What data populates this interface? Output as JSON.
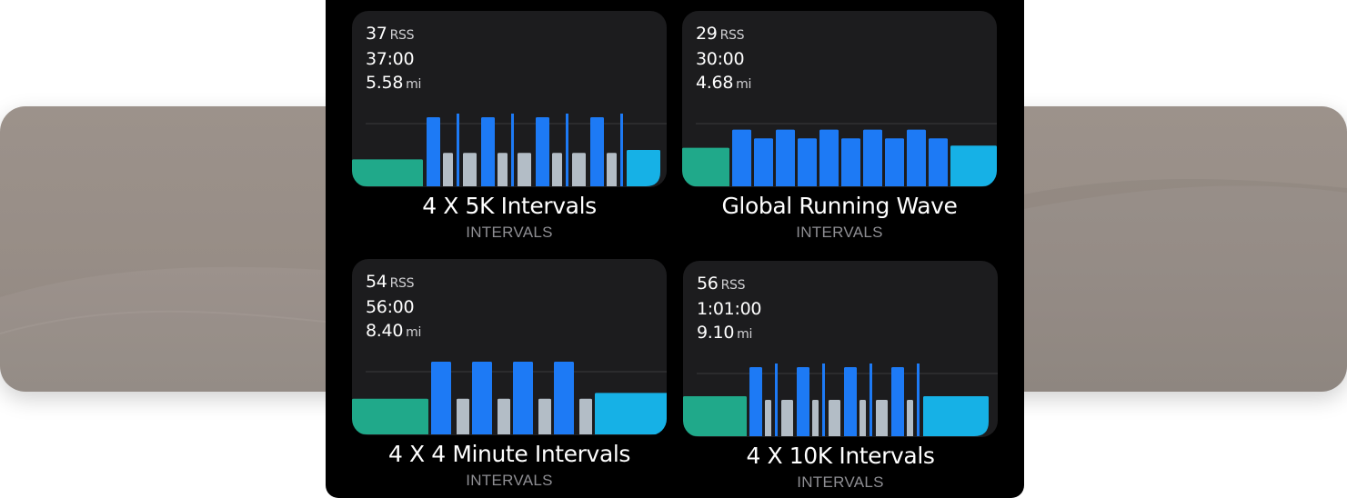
{
  "colors": {
    "warmup": "#20a98a",
    "work": "#1d7af5",
    "recovery": "#b3bdc6",
    "cooldown": "#16b1e6",
    "card_bg": "#1c1c1e",
    "panel_bg": "#000000"
  },
  "unit_rss": "RSS",
  "unit_mi": "mi",
  "workouts": [
    {
      "rss": "37",
      "duration": "37:00",
      "distance": "5.58",
      "title": "4 X 5K Intervals",
      "category": "INTERVALS",
      "chart_data": {
        "type": "bar",
        "segments": [
          {
            "kind": "warmup",
            "w": 78,
            "h": 0.37
          },
          {
            "kind": "gap",
            "w": 4
          },
          {
            "kind": "work",
            "w": 15,
            "h": 0.95
          },
          {
            "kind": "gap",
            "w": 3
          },
          {
            "kind": "recovery",
            "w": 11,
            "h": 0.46
          },
          {
            "kind": "gap",
            "w": 4
          },
          {
            "kind": "work",
            "w": 3,
            "h": 1.0
          },
          {
            "kind": "gap",
            "w": 4
          },
          {
            "kind": "recovery",
            "w": 15,
            "h": 0.46
          },
          {
            "kind": "gap",
            "w": 5
          },
          {
            "kind": "work",
            "w": 15,
            "h": 0.95
          },
          {
            "kind": "gap",
            "w": 3
          },
          {
            "kind": "recovery",
            "w": 11,
            "h": 0.46
          },
          {
            "kind": "gap",
            "w": 4
          },
          {
            "kind": "work",
            "w": 3,
            "h": 1.0
          },
          {
            "kind": "gap",
            "w": 4
          },
          {
            "kind": "recovery",
            "w": 15,
            "h": 0.46
          },
          {
            "kind": "gap",
            "w": 5
          },
          {
            "kind": "work",
            "w": 15,
            "h": 0.95
          },
          {
            "kind": "gap",
            "w": 3
          },
          {
            "kind": "recovery",
            "w": 11,
            "h": 0.46
          },
          {
            "kind": "gap",
            "w": 4
          },
          {
            "kind": "work",
            "w": 3,
            "h": 1.0
          },
          {
            "kind": "gap",
            "w": 4
          },
          {
            "kind": "recovery",
            "w": 15,
            "h": 0.46
          },
          {
            "kind": "gap",
            "w": 5
          },
          {
            "kind": "work",
            "w": 15,
            "h": 0.95
          },
          {
            "kind": "gap",
            "w": 3
          },
          {
            "kind": "recovery",
            "w": 11,
            "h": 0.46
          },
          {
            "kind": "gap",
            "w": 4
          },
          {
            "kind": "work",
            "w": 3,
            "h": 1.0
          },
          {
            "kind": "gap",
            "w": 4
          },
          {
            "kind": "cooldown",
            "w": 37,
            "h": 0.5
          }
        ]
      }
    },
    {
      "rss": "29",
      "duration": "30:00",
      "distance": "4.68",
      "title": "Global Running Wave",
      "category": "INTERVALS",
      "chart_data": {
        "type": "bar",
        "segments": [
          {
            "kind": "warmup",
            "w": 52,
            "h": 0.53
          },
          {
            "kind": "gap",
            "w": 3
          },
          {
            "kind": "work",
            "w": 21,
            "h": 0.78
          },
          {
            "kind": "gap",
            "w": 3
          },
          {
            "kind": "work",
            "w": 21,
            "h": 0.66
          },
          {
            "kind": "gap",
            "w": 3
          },
          {
            "kind": "work",
            "w": 21,
            "h": 0.78
          },
          {
            "kind": "gap",
            "w": 3
          },
          {
            "kind": "work",
            "w": 21,
            "h": 0.66
          },
          {
            "kind": "gap",
            "w": 3
          },
          {
            "kind": "work",
            "w": 21,
            "h": 0.78
          },
          {
            "kind": "gap",
            "w": 3
          },
          {
            "kind": "work",
            "w": 21,
            "h": 0.66
          },
          {
            "kind": "gap",
            "w": 3
          },
          {
            "kind": "work",
            "w": 21,
            "h": 0.78
          },
          {
            "kind": "gap",
            "w": 3
          },
          {
            "kind": "work",
            "w": 21,
            "h": 0.66
          },
          {
            "kind": "gap",
            "w": 3
          },
          {
            "kind": "work",
            "w": 21,
            "h": 0.78
          },
          {
            "kind": "gap",
            "w": 3
          },
          {
            "kind": "work",
            "w": 21,
            "h": 0.66
          },
          {
            "kind": "gap",
            "w": 3
          },
          {
            "kind": "cooldown",
            "w": 51,
            "h": 0.56
          }
        ]
      }
    },
    {
      "rss": "54",
      "duration": "56:00",
      "distance": "8.40",
      "title": "4 X 4 Minute Intervals",
      "category": "INTERVALS",
      "chart_data": {
        "type": "bar",
        "segments": [
          {
            "kind": "warmup",
            "w": 84,
            "h": 0.49
          },
          {
            "kind": "gap",
            "w": 3
          },
          {
            "kind": "work",
            "w": 22,
            "h": 1.0
          },
          {
            "kind": "gap",
            "w": 6
          },
          {
            "kind": "recovery",
            "w": 14,
            "h": 0.49
          },
          {
            "kind": "gap",
            "w": 3
          },
          {
            "kind": "work",
            "w": 22,
            "h": 1.0
          },
          {
            "kind": "gap",
            "w": 6
          },
          {
            "kind": "recovery",
            "w": 14,
            "h": 0.49
          },
          {
            "kind": "gap",
            "w": 3
          },
          {
            "kind": "work",
            "w": 22,
            "h": 1.0
          },
          {
            "kind": "gap",
            "w": 6
          },
          {
            "kind": "recovery",
            "w": 14,
            "h": 0.49
          },
          {
            "kind": "gap",
            "w": 3
          },
          {
            "kind": "work",
            "w": 22,
            "h": 1.0
          },
          {
            "kind": "gap",
            "w": 6
          },
          {
            "kind": "recovery",
            "w": 14,
            "h": 0.49
          },
          {
            "kind": "gap",
            "w": 3
          },
          {
            "kind": "cooldown",
            "w": 85,
            "h": 0.57
          }
        ]
      }
    },
    {
      "rss": "56",
      "duration": "1:01:00",
      "distance": "9.10",
      "title": "4 X 10K Intervals",
      "category": "INTERVALS",
      "chart_data": {
        "type": "bar",
        "segments": [
          {
            "kind": "warmup",
            "w": 70,
            "h": 0.55
          },
          {
            "kind": "gap",
            "w": 3
          },
          {
            "kind": "work",
            "w": 14,
            "h": 0.95
          },
          {
            "kind": "gap",
            "w": 3
          },
          {
            "kind": "recovery",
            "w": 7,
            "h": 0.5
          },
          {
            "kind": "gap",
            "w": 4
          },
          {
            "kind": "work",
            "w": 3,
            "h": 1.0
          },
          {
            "kind": "gap",
            "w": 4
          },
          {
            "kind": "recovery",
            "w": 13,
            "h": 0.5
          },
          {
            "kind": "gap",
            "w": 4
          },
          {
            "kind": "work",
            "w": 14,
            "h": 0.95
          },
          {
            "kind": "gap",
            "w": 3
          },
          {
            "kind": "recovery",
            "w": 7,
            "h": 0.5
          },
          {
            "kind": "gap",
            "w": 4
          },
          {
            "kind": "work",
            "w": 3,
            "h": 1.0
          },
          {
            "kind": "gap",
            "w": 4
          },
          {
            "kind": "recovery",
            "w": 13,
            "h": 0.5
          },
          {
            "kind": "gap",
            "w": 4
          },
          {
            "kind": "work",
            "w": 14,
            "h": 0.95
          },
          {
            "kind": "gap",
            "w": 3
          },
          {
            "kind": "recovery",
            "w": 7,
            "h": 0.5
          },
          {
            "kind": "gap",
            "w": 4
          },
          {
            "kind": "work",
            "w": 3,
            "h": 1.0
          },
          {
            "kind": "gap",
            "w": 4
          },
          {
            "kind": "recovery",
            "w": 13,
            "h": 0.5
          },
          {
            "kind": "gap",
            "w": 4
          },
          {
            "kind": "work",
            "w": 14,
            "h": 0.95
          },
          {
            "kind": "gap",
            "w": 3
          },
          {
            "kind": "recovery",
            "w": 7,
            "h": 0.5
          },
          {
            "kind": "gap",
            "w": 4
          },
          {
            "kind": "work",
            "w": 3,
            "h": 1.0
          },
          {
            "kind": "gap",
            "w": 4
          },
          {
            "kind": "cooldown",
            "w": 72,
            "h": 0.55
          }
        ]
      }
    }
  ]
}
